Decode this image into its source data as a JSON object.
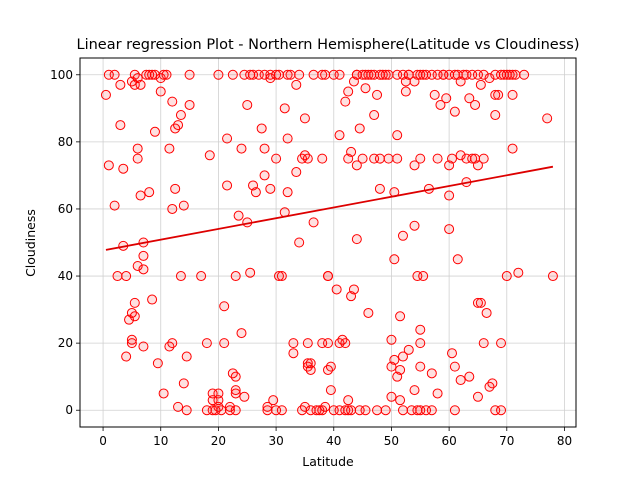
{
  "chart_data": {
    "type": "scatter",
    "title": "Linear regression Plot - Northern Hemisphere(Latitude vs Cloudiness)",
    "xlabel": "Latitude",
    "ylabel": "Cloudiness",
    "xlim": [
      -4,
      82
    ],
    "ylim": [
      -5,
      105
    ],
    "xticks": [
      0,
      10,
      20,
      30,
      40,
      50,
      60,
      70,
      80
    ],
    "yticks": [
      0,
      20,
      40,
      60,
      80,
      100
    ],
    "grid": true,
    "colors": {
      "marker_edge": "#ff0000",
      "line": "#dd0000"
    },
    "regression": {
      "x": [
        0.5,
        78
      ],
      "y": [
        47.8,
        72.6
      ]
    },
    "points": [
      [
        0.5,
        94
      ],
      [
        1,
        100
      ],
      [
        2,
        100
      ],
      [
        1,
        73
      ],
      [
        2,
        61
      ],
      [
        2.5,
        40
      ],
      [
        3,
        97
      ],
      [
        3,
        85
      ],
      [
        3.5,
        49
      ],
      [
        3.5,
        72
      ],
      [
        4,
        40
      ],
      [
        4,
        16
      ],
      [
        4.5,
        27
      ],
      [
        5,
        29
      ],
      [
        5,
        98
      ],
      [
        5,
        21
      ],
      [
        5,
        20
      ],
      [
        5.5,
        100
      ],
      [
        5.5,
        32
      ],
      [
        5.5,
        28
      ],
      [
        5.5,
        97
      ],
      [
        6,
        99
      ],
      [
        6,
        78
      ],
      [
        6,
        75
      ],
      [
        6,
        43
      ],
      [
        6.5,
        64
      ],
      [
        6.5,
        97
      ],
      [
        7,
        50
      ],
      [
        7,
        46
      ],
      [
        7,
        42
      ],
      [
        7,
        19
      ],
      [
        7.5,
        100
      ],
      [
        8,
        100
      ],
      [
        8,
        65
      ],
      [
        8.5,
        33
      ],
      [
        8.5,
        100
      ],
      [
        9,
        83
      ],
      [
        9,
        100
      ],
      [
        9.5,
        14
      ],
      [
        10,
        99
      ],
      [
        10,
        95
      ],
      [
        10.5,
        100
      ],
      [
        10.5,
        5
      ],
      [
        11,
        100
      ],
      [
        11.5,
        78
      ],
      [
        11.5,
        19
      ],
      [
        12,
        92
      ],
      [
        12,
        60
      ],
      [
        12,
        20
      ],
      [
        12.5,
        66
      ],
      [
        12.5,
        84
      ],
      [
        13,
        85
      ],
      [
        13,
        1
      ],
      [
        13.5,
        88
      ],
      [
        13.5,
        40
      ],
      [
        14,
        61
      ],
      [
        14,
        8
      ],
      [
        14.5,
        16
      ],
      [
        14.5,
        0
      ],
      [
        15,
        91
      ],
      [
        15,
        100
      ],
      [
        17,
        40
      ],
      [
        18,
        20
      ],
      [
        18,
        0
      ],
      [
        18.5,
        76
      ],
      [
        19,
        0
      ],
      [
        19,
        5
      ],
      [
        19,
        3
      ],
      [
        19.5,
        0
      ],
      [
        20,
        1
      ],
      [
        20,
        5
      ],
      [
        20,
        100
      ],
      [
        20,
        3
      ],
      [
        20.5,
        0
      ],
      [
        21,
        31
      ],
      [
        21,
        20
      ],
      [
        21.5,
        81
      ],
      [
        21.5,
        67
      ],
      [
        22,
        1
      ],
      [
        22,
        0
      ],
      [
        22.5,
        100
      ],
      [
        22.5,
        11
      ],
      [
        23,
        10
      ],
      [
        23,
        40
      ],
      [
        23,
        5
      ],
      [
        23,
        6
      ],
      [
        23,
        0
      ],
      [
        23.5,
        58
      ],
      [
        24,
        78
      ],
      [
        24,
        23
      ],
      [
        24.5,
        100
      ],
      [
        24.5,
        4
      ],
      [
        25,
        91
      ],
      [
        25,
        56
      ],
      [
        25.5,
        100
      ],
      [
        25.5,
        41
      ],
      [
        26,
        67
      ],
      [
        26,
        100
      ],
      [
        26.5,
        65
      ],
      [
        27,
        100
      ],
      [
        27.5,
        84
      ],
      [
        28,
        100
      ],
      [
        28,
        70
      ],
      [
        28,
        78
      ],
      [
        28.5,
        1
      ],
      [
        28.5,
        0
      ],
      [
        29,
        99
      ],
      [
        29,
        66
      ],
      [
        29,
        100
      ],
      [
        29.5,
        3
      ],
      [
        30,
        100
      ],
      [
        30,
        75
      ],
      [
        30,
        0
      ],
      [
        30.5,
        40
      ],
      [
        30.5,
        100
      ],
      [
        31,
        0
      ],
      [
        31,
        40
      ],
      [
        31.5,
        90
      ],
      [
        31.5,
        59
      ],
      [
        32,
        81
      ],
      [
        32,
        65
      ],
      [
        32,
        100
      ],
      [
        32.5,
        100
      ],
      [
        33,
        17
      ],
      [
        33,
        20
      ],
      [
        33.5,
        71
      ],
      [
        33.5,
        97
      ],
      [
        34,
        100
      ],
      [
        34,
        50
      ],
      [
        34.5,
        75
      ],
      [
        34.5,
        0
      ],
      [
        35,
        87
      ],
      [
        35,
        76
      ],
      [
        35,
        1
      ],
      [
        35.5,
        75
      ],
      [
        35.5,
        14
      ],
      [
        35.5,
        20
      ],
      [
        35.5,
        13
      ],
      [
        36,
        14
      ],
      [
        36,
        12
      ],
      [
        36,
        0
      ],
      [
        36.5,
        100
      ],
      [
        36.5,
        56
      ],
      [
        37,
        0
      ],
      [
        37.5,
        0
      ],
      [
        38,
        0
      ],
      [
        38,
        100
      ],
      [
        38,
        75
      ],
      [
        38,
        20
      ],
      [
        38.5,
        100
      ],
      [
        38.5,
        1
      ],
      [
        39,
        40
      ],
      [
        39,
        40
      ],
      [
        39,
        20
      ],
      [
        39,
        12
      ],
      [
        39.5,
        13
      ],
      [
        39.5,
        6
      ],
      [
        40,
        100
      ],
      [
        40,
        0
      ],
      [
        40.5,
        36
      ],
      [
        41,
        100
      ],
      [
        41,
        82
      ],
      [
        41,
        20
      ],
      [
        41,
        0
      ],
      [
        41.5,
        21
      ],
      [
        42,
        92
      ],
      [
        42,
        0
      ],
      [
        42,
        20
      ],
      [
        42.5,
        95
      ],
      [
        42.5,
        75
      ],
      [
        42.5,
        3
      ],
      [
        42.5,
        0
      ],
      [
        43,
        77
      ],
      [
        43,
        34
      ],
      [
        43,
        0
      ],
      [
        43.5,
        36
      ],
      [
        43.5,
        98
      ],
      [
        44,
        100
      ],
      [
        44,
        100
      ],
      [
        44,
        73
      ],
      [
        44,
        51
      ],
      [
        44.5,
        84
      ],
      [
        44.5,
        0
      ],
      [
        45,
        75
      ],
      [
        45,
        100
      ],
      [
        45.5,
        96
      ],
      [
        45.5,
        100
      ],
      [
        45.5,
        0
      ],
      [
        46,
        29
      ],
      [
        46,
        100
      ],
      [
        46.5,
        100
      ],
      [
        47,
        75
      ],
      [
        47,
        88
      ],
      [
        47,
        100
      ],
      [
        47.5,
        94
      ],
      [
        47.5,
        0
      ],
      [
        48,
        75
      ],
      [
        48,
        66
      ],
      [
        48,
        100
      ],
      [
        48.5,
        100
      ],
      [
        49,
        0
      ],
      [
        49,
        100
      ],
      [
        49.5,
        100
      ],
      [
        49.5,
        75
      ],
      [
        50,
        21
      ],
      [
        50,
        13
      ],
      [
        50,
        4
      ],
      [
        50.5,
        65
      ],
      [
        50.5,
        45
      ],
      [
        50.5,
        15
      ],
      [
        51,
        82
      ],
      [
        51,
        75
      ],
      [
        51,
        100
      ],
      [
        51,
        10
      ],
      [
        51.5,
        3
      ],
      [
        51.5,
        12
      ],
      [
        51.5,
        28
      ],
      [
        52,
        100
      ],
      [
        52,
        52
      ],
      [
        52,
        16
      ],
      [
        52,
        0
      ],
      [
        52.5,
        95
      ],
      [
        52.5,
        98
      ],
      [
        53,
        100
      ],
      [
        53,
        100
      ],
      [
        53,
        18
      ],
      [
        53.5,
        0
      ],
      [
        54,
        73
      ],
      [
        54,
        98
      ],
      [
        54,
        55
      ],
      [
        54,
        6
      ],
      [
        54.5,
        100
      ],
      [
        54.5,
        40
      ],
      [
        54.5,
        0
      ],
      [
        55,
        100
      ],
      [
        55,
        75
      ],
      [
        55,
        24
      ],
      [
        55,
        20
      ],
      [
        55,
        13
      ],
      [
        55,
        0
      ],
      [
        55.5,
        100
      ],
      [
        55.5,
        40
      ],
      [
        56,
        100
      ],
      [
        56,
        0
      ],
      [
        56.5,
        66
      ],
      [
        57,
        100
      ],
      [
        57,
        11
      ],
      [
        57,
        0
      ],
      [
        57.5,
        94
      ],
      [
        58,
        100
      ],
      [
        58,
        75
      ],
      [
        58,
        5
      ],
      [
        58.5,
        91
      ],
      [
        59,
        100
      ],
      [
        59,
        100
      ],
      [
        59.5,
        93
      ],
      [
        60,
        100
      ],
      [
        60,
        73
      ],
      [
        60,
        64
      ],
      [
        60,
        54
      ],
      [
        60.5,
        75
      ],
      [
        60.5,
        17
      ],
      [
        61,
        100
      ],
      [
        61,
        89
      ],
      [
        61,
        13
      ],
      [
        61,
        0
      ],
      [
        61.5,
        100
      ],
      [
        61.5,
        45
      ],
      [
        62,
        98
      ],
      [
        62,
        76
      ],
      [
        62,
        9
      ],
      [
        62.5,
        100
      ],
      [
        63,
        100
      ],
      [
        63,
        68
      ],
      [
        63,
        75
      ],
      [
        63.5,
        93
      ],
      [
        63.5,
        10
      ],
      [
        64,
        100
      ],
      [
        64,
        75
      ],
      [
        64.5,
        91
      ],
      [
        64.5,
        75
      ],
      [
        65,
        100
      ],
      [
        65,
        73
      ],
      [
        65,
        32
      ],
      [
        65,
        4
      ],
      [
        65.5,
        97
      ],
      [
        65.5,
        32
      ],
      [
        66,
        100
      ],
      [
        66,
        75
      ],
      [
        66,
        20
      ],
      [
        66.5,
        29
      ],
      [
        67,
        99
      ],
      [
        67,
        7
      ],
      [
        67.5,
        8
      ],
      [
        68,
        100
      ],
      [
        68,
        94
      ],
      [
        68,
        88
      ],
      [
        68,
        0
      ],
      [
        68.5,
        94
      ],
      [
        69,
        100
      ],
      [
        69,
        20
      ],
      [
        69,
        0
      ],
      [
        69.5,
        100
      ],
      [
        70,
        100
      ],
      [
        70,
        40
      ],
      [
        70.5,
        100
      ],
      [
        71,
        100
      ],
      [
        71,
        78
      ],
      [
        71,
        94
      ],
      [
        71.5,
        100
      ],
      [
        72,
        41
      ],
      [
        73,
        100
      ],
      [
        77,
        87
      ],
      [
        78,
        40
      ]
    ]
  }
}
